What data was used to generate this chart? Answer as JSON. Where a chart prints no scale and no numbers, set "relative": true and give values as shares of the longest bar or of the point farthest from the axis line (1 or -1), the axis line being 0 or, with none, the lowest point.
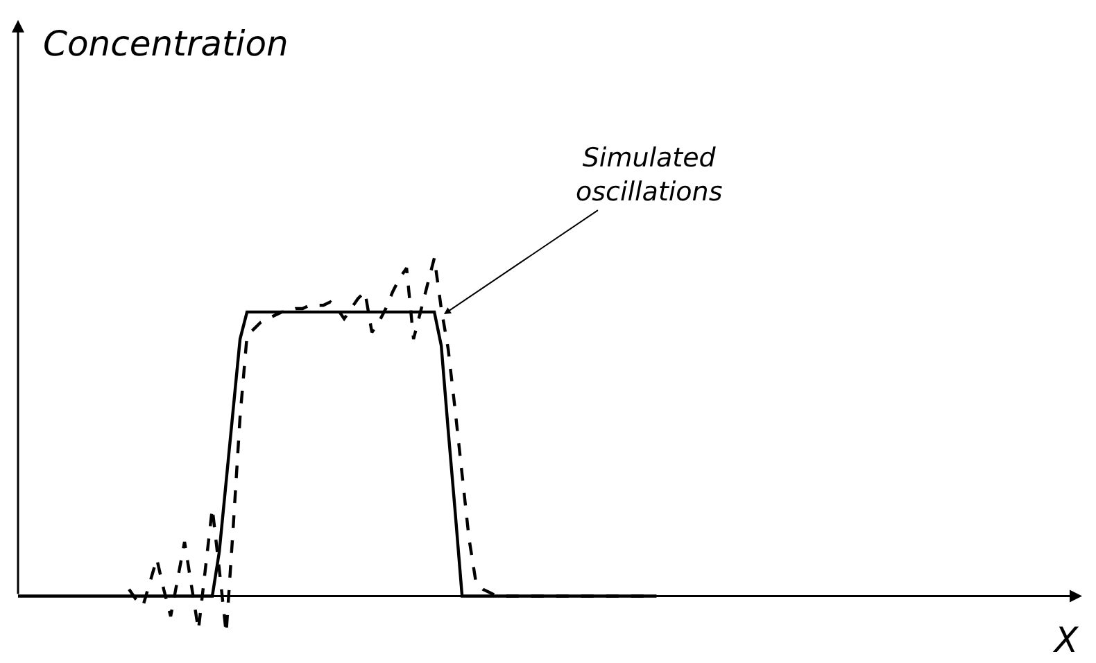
{
  "chart_data": {
    "type": "line",
    "relative": true,
    "marker": "none",
    "categories": [
      null,
      null,
      null,
      null,
      null,
      null,
      null,
      null,
      null,
      null,
      null,
      null,
      null,
      null,
      null,
      null,
      null,
      null,
      null,
      null,
      null,
      null,
      null,
      null,
      null,
      null,
      null,
      null,
      null,
      null,
      null,
      null,
      null,
      null,
      null,
      null,
      null,
      null,
      null,
      null,
      null,
      null,
      null,
      null,
      null,
      null,
      null,
      null,
      null,
      null,
      null,
      null,
      null,
      null,
      null,
      null,
      null,
      null,
      null,
      null,
      null,
      null,
      null,
      null,
      null,
      null,
      null,
      null,
      null,
      null,
      null,
      null,
      null,
      null,
      null,
      null,
      null,
      null,
      null,
      null,
      null,
      null,
      null,
      null,
      null,
      null,
      null,
      null,
      null,
      null,
      null,
      null,
      null
    ],
    "series": [
      {
        "color": "#000000",
        "line_style": "solid",
        "values": [
          0,
          0,
          0,
          0,
          0,
          0,
          0,
          0,
          0,
          0,
          0,
          0,
          0,
          0,
          0,
          0,
          0,
          0,
          0,
          0,
          0,
          0,
          0,
          0,
          0,
          0,
          0,
          0,
          0,
          0.13,
          0.34,
          0.55,
          0.76,
          0.84,
          0.84,
          0.84,
          0.84,
          0.84,
          0.84,
          0.84,
          0.84,
          0.84,
          0.84,
          0.84,
          0.84,
          0.84,
          0.84,
          0.84,
          0.84,
          0.84,
          0.84,
          0.84,
          0.84,
          0.84,
          0.84,
          0.84,
          0.84,
          0.84,
          0.84,
          0.84,
          0.84,
          0.74,
          0.49,
          0.25,
          0,
          0,
          0,
          0,
          0,
          0,
          0,
          0,
          0,
          0,
          0,
          0,
          0,
          0,
          0,
          0,
          0,
          0,
          0,
          0,
          0,
          0,
          0,
          0,
          0,
          0,
          0,
          0,
          0
        ]
      },
      {
        "color": "#000000",
        "line_style": "dashed",
        "values": [
          null,
          null,
          null,
          null,
          null,
          null,
          null,
          null,
          null,
          null,
          null,
          null,
          null,
          null,
          null,
          null,
          0.02,
          -0.01,
          -0.03,
          0.04,
          0.11,
          0.02,
          -0.06,
          0.05,
          0.16,
          0.03,
          -0.1,
          0.08,
          0.26,
          0.08,
          -0.11,
          0.2,
          0.53,
          0.77,
          0.79,
          0.81,
          0.82,
          0.83,
          0.84,
          0.84,
          0.85,
          0.85,
          0.86,
          0.86,
          0.86,
          0.87,
          0.85,
          0.82,
          0.85,
          0.88,
          0.9,
          0.78,
          0.81,
          0.85,
          0.9,
          0.94,
          0.97,
          0.76,
          0.84,
          0.92,
          1,
          0.85,
          0.73,
          0.55,
          0.36,
          0.17,
          0.04,
          0.02,
          0.01,
          0,
          0,
          0,
          0,
          0,
          0,
          0,
          0,
          0,
          0,
          0,
          0,
          0,
          0,
          0,
          0,
          0,
          0,
          0,
          0,
          0,
          0,
          0,
          0
        ]
      }
    ],
    "annotations": [
      "Concentration",
      "Simulated\noscillations",
      "X"
    ]
  }
}
